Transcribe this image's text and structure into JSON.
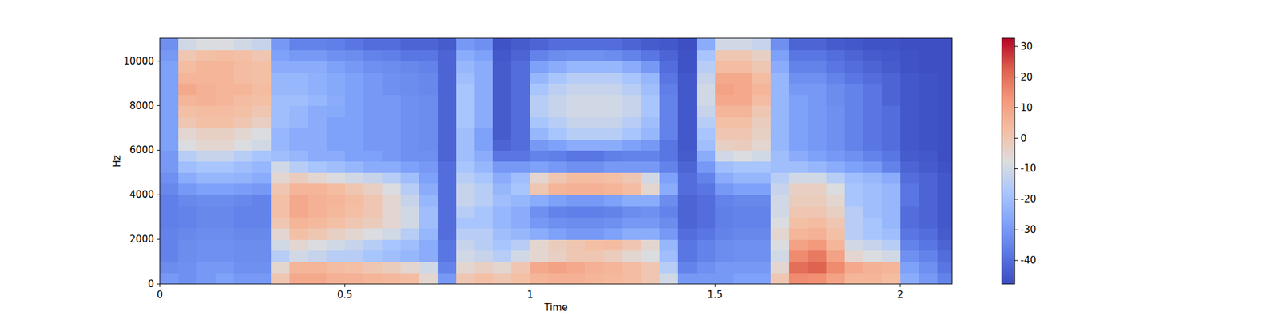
{
  "chart_data": {
    "type": "heatmap",
    "x_label": "Time",
    "y_label": "Hz",
    "xlim": [
      0,
      2.14
    ],
    "ylim": [
      0,
      11025
    ],
    "xticks": [
      0,
      0.5,
      1,
      1.5,
      2
    ],
    "yticks": [
      0,
      2000,
      4000,
      6000,
      8000,
      10000
    ],
    "x_edges": [
      0,
      0.05,
      0.1,
      0.15,
      0.2,
      0.25,
      0.3,
      0.35,
      0.4,
      0.45,
      0.5,
      0.55,
      0.6,
      0.65,
      0.7,
      0.75,
      0.8,
      0.85,
      0.9,
      0.95,
      1,
      1.05,
      1.1,
      1.15,
      1.2,
      1.25,
      1.3,
      1.35,
      1.4,
      1.45,
      1.5,
      1.55,
      1.6,
      1.65,
      1.7,
      1.75,
      1.8,
      1.85,
      1.9,
      1.95,
      2,
      2.05,
      2.1,
      2.14
    ],
    "y_edges": [
      0,
      500,
      1000,
      1500,
      2000,
      2500,
      3000,
      3500,
      4000,
      4500,
      5000,
      5500,
      6000,
      6500,
      7000,
      7500,
      8000,
      8500,
      9000,
      9500,
      10000,
      10500,
      11025
    ],
    "cells": [
      [
        -30,
        -32,
        -30,
        -28,
        -30,
        -30,
        0,
        8,
        8,
        6,
        6,
        5,
        4,
        3,
        -5,
        -30,
        0,
        2,
        0,
        2,
        5,
        6,
        6,
        5,
        4,
        3,
        0,
        -10,
        -30,
        -30,
        -30,
        -28,
        -28,
        0,
        15,
        14,
        10,
        5,
        5,
        3,
        -25,
        -30,
        -35
      ],
      [
        -33,
        -32,
        -30,
        -30,
        -32,
        -32,
        -5,
        5,
        5,
        3,
        2,
        0,
        -2,
        -5,
        -10,
        -35,
        -5,
        -3,
        -5,
        0,
        8,
        10,
        8,
        6,
        5,
        3,
        0,
        -15,
        -35,
        -32,
        -30,
        -30,
        -30,
        -5,
        20,
        22,
        15,
        8,
        6,
        5,
        -28,
        -32,
        -38
      ],
      [
        -35,
        -33,
        -32,
        -32,
        -33,
        -33,
        -15,
        -10,
        -12,
        -15,
        -15,
        -18,
        -20,
        -22,
        -25,
        -38,
        -10,
        -12,
        -15,
        -10,
        -5,
        -3,
        0,
        0,
        -2,
        -5,
        -8,
        -20,
        -38,
        -35,
        -33,
        -32,
        -32,
        -10,
        15,
        18,
        10,
        -5,
        -8,
        -10,
        -32,
        -35,
        -40
      ],
      [
        -35,
        -33,
        -32,
        -32,
        -33,
        -33,
        -10,
        -5,
        -8,
        -10,
        -12,
        -15,
        -18,
        -20,
        -25,
        -38,
        -12,
        -15,
        -18,
        -15,
        -5,
        -2,
        0,
        2,
        3,
        0,
        -5,
        -22,
        -38,
        -35,
        -33,
        -32,
        -32,
        -8,
        10,
        12,
        5,
        -10,
        -12,
        -15,
        -35,
        -38,
        -42
      ],
      [
        -35,
        -34,
        -33,
        -33,
        -34,
        -34,
        -5,
        2,
        0,
        -3,
        -5,
        -8,
        -10,
        -15,
        -22,
        -40,
        -15,
        -15,
        -20,
        -22,
        -25,
        -28,
        -30,
        -30,
        -28,
        -25,
        -25,
        -30,
        -40,
        -38,
        -35,
        -34,
        -34,
        -5,
        5,
        6,
        2,
        -15,
        -18,
        -20,
        -38,
        -40,
        -44
      ],
      [
        -36,
        -35,
        -34,
        -34,
        -35,
        -35,
        0,
        5,
        4,
        2,
        0,
        -2,
        -5,
        -10,
        -20,
        -40,
        -18,
        -18,
        -22,
        -25,
        -30,
        -32,
        -33,
        -33,
        -32,
        -30,
        -30,
        -33,
        -42,
        -40,
        -36,
        -35,
        -35,
        -8,
        2,
        3,
        0,
        -15,
        -18,
        -22,
        -40,
        -42,
        -45
      ],
      [
        -36,
        -35,
        -34,
        -34,
        -35,
        -35,
        2,
        8,
        6,
        4,
        2,
        0,
        -5,
        -10,
        -20,
        -40,
        -15,
        -18,
        -22,
        -25,
        -32,
        -35,
        -36,
        -36,
        -35,
        -33,
        -32,
        -35,
        -42,
        -40,
        -36,
        -35,
        -35,
        -10,
        0,
        0,
        -3,
        -15,
        -20,
        -22,
        -40,
        -42,
        -45
      ],
      [
        -36,
        -34,
        -33,
        -33,
        -34,
        -35,
        2,
        8,
        6,
        5,
        3,
        0,
        -5,
        -12,
        -22,
        -40,
        -12,
        -15,
        -20,
        -22,
        -25,
        -28,
        -30,
        -30,
        -28,
        -25,
        -25,
        -33,
        -42,
        -40,
        -35,
        -34,
        -34,
        -10,
        -2,
        -2,
        -5,
        -18,
        -20,
        -22,
        -38,
        -42,
        -45
      ],
      [
        -34,
        -30,
        -28,
        -28,
        -29,
        -30,
        0,
        5,
        5,
        3,
        0,
        -3,
        -8,
        -15,
        -25,
        -40,
        -12,
        -15,
        -22,
        -18,
        0,
        5,
        6,
        6,
        5,
        3,
        -5,
        -25,
        -40,
        -38,
        -30,
        -28,
        -28,
        -12,
        -3,
        -3,
        -8,
        -18,
        -20,
        -22,
        -38,
        -42,
        -45
      ],
      [
        -32,
        -25,
        -22,
        -22,
        -23,
        -25,
        -5,
        -2,
        -5,
        -8,
        -10,
        -12,
        -15,
        -20,
        -28,
        -40,
        -15,
        -18,
        -25,
        -20,
        -5,
        0,
        3,
        3,
        2,
        0,
        -10,
        -28,
        -40,
        -35,
        -25,
        -22,
        -22,
        -15,
        -10,
        -10,
        -15,
        -20,
        -22,
        -25,
        -40,
        -42,
        -45
      ],
      [
        -30,
        -20,
        -18,
        -18,
        -20,
        -22,
        -10,
        -15,
        -18,
        -20,
        -22,
        -25,
        -25,
        -28,
        -30,
        -40,
        -18,
        -22,
        -30,
        -30,
        -28,
        -30,
        -32,
        -32,
        -30,
        -30,
        -30,
        -35,
        -42,
        -30,
        -20,
        -18,
        -18,
        -20,
        -20,
        -22,
        -25,
        -28,
        -30,
        -35,
        -42,
        -44,
        -46
      ],
      [
        -30,
        -15,
        -12,
        -12,
        -15,
        -18,
        -20,
        -22,
        -25,
        -25,
        -28,
        -28,
        -30,
        -32,
        -32,
        -42,
        -20,
        -25,
        -38,
        -38,
        -35,
        -36,
        -38,
        -38,
        -36,
        -35,
        -35,
        -38,
        -44,
        -25,
        -10,
        -8,
        -10,
        -20,
        -25,
        -28,
        -30,
        -32,
        -35,
        -38,
        -44,
        -45,
        -47
      ],
      [
        -28,
        -8,
        -5,
        -5,
        -8,
        -10,
        -22,
        -25,
        -25,
        -28,
        -28,
        -30,
        -30,
        -32,
        -33,
        -42,
        -20,
        -28,
        -42,
        -40,
        -30,
        -28,
        -25,
        -25,
        -25,
        -28,
        -30,
        -38,
        -45,
        -20,
        -3,
        -2,
        -5,
        -22,
        -28,
        -30,
        -32,
        -35,
        -38,
        -40,
        -45,
        -46,
        -47
      ],
      [
        -28,
        -5,
        -3,
        -3,
        -5,
        -8,
        -22,
        -25,
        -25,
        -28,
        -28,
        -30,
        -30,
        -32,
        -33,
        -42,
        -20,
        -28,
        -44,
        -40,
        -22,
        -18,
        -15,
        -15,
        -15,
        -18,
        -22,
        -35,
        -45,
        -18,
        0,
        0,
        -3,
        -22,
        -28,
        -30,
        -32,
        -35,
        -38,
        -40,
        -45,
        -46,
        -47
      ],
      [
        -28,
        0,
        2,
        2,
        0,
        -3,
        -20,
        -22,
        -25,
        -28,
        -28,
        -30,
        -30,
        -32,
        -33,
        -42,
        -18,
        -25,
        -44,
        -40,
        -18,
        -15,
        -12,
        -12,
        -12,
        -15,
        -20,
        -35,
        -45,
        -15,
        2,
        2,
        -2,
        -22,
        -28,
        -30,
        -32,
        -35,
        -38,
        -40,
        -45,
        -46,
        -47
      ],
      [
        -28,
        2,
        3,
        3,
        2,
        0,
        -20,
        -22,
        -25,
        -26,
        -28,
        -30,
        -30,
        -32,
        -33,
        -42,
        -18,
        -25,
        -44,
        -40,
        -15,
        -12,
        -10,
        -10,
        -10,
        -12,
        -18,
        -35,
        -45,
        -12,
        5,
        5,
        0,
        -22,
        -28,
        -30,
        -32,
        -35,
        -38,
        -40,
        -45,
        -46,
        -47
      ],
      [
        -28,
        5,
        6,
        5,
        3,
        2,
        -20,
        -20,
        -22,
        -25,
        -28,
        -30,
        -30,
        -32,
        -33,
        -42,
        -18,
        -25,
        -44,
        -40,
        -15,
        -12,
        -10,
        -10,
        -10,
        -12,
        -18,
        -35,
        -45,
        -10,
        8,
        8,
        3,
        -22,
        -28,
        -30,
        -33,
        -35,
        -38,
        -42,
        -45,
        -46,
        -47
      ],
      [
        -28,
        8,
        6,
        5,
        5,
        3,
        -22,
        -22,
        -24,
        -26,
        -28,
        -30,
        -32,
        -33,
        -34,
        -42,
        -18,
        -25,
        -44,
        -40,
        -18,
        -14,
        -12,
        -12,
        -12,
        -15,
        -20,
        -36,
        -45,
        -10,
        10,
        8,
        5,
        -22,
        -30,
        -30,
        -33,
        -35,
        -38,
        -42,
        -45,
        -46,
        -47
      ],
      [
        -28,
        5,
        5,
        5,
        3,
        2,
        -22,
        -22,
        -24,
        -26,
        -28,
        -30,
        -32,
        -33,
        -34,
        -42,
        -20,
        -25,
        -44,
        -40,
        -22,
        -18,
        -15,
        -15,
        -15,
        -18,
        -22,
        -38,
        -45,
        -12,
        8,
        8,
        3,
        -22,
        -32,
        -32,
        -35,
        -38,
        -40,
        -42,
        -45,
        -46,
        -47
      ],
      [
        -28,
        3,
        5,
        5,
        3,
        2,
        -25,
        -25,
        -25,
        -28,
        -30,
        -32,
        -33,
        -34,
        -35,
        -42,
        -22,
        -25,
        -44,
        -40,
        -28,
        -25,
        -22,
        -22,
        -22,
        -25,
        -30,
        -40,
        -46,
        -15,
        3,
        3,
        0,
        -25,
        -35,
        -35,
        -38,
        -40,
        -42,
        -44,
        -46,
        -47,
        -47
      ],
      [
        -30,
        0,
        2,
        3,
        2,
        0,
        -28,
        -30,
        -30,
        -32,
        -33,
        -35,
        -36,
        -38,
        -38,
        -42,
        -25,
        -28,
        -45,
        -42,
        -35,
        -33,
        -32,
        -32,
        -33,
        -35,
        -38,
        -42,
        -46,
        -18,
        0,
        0,
        -3,
        -28,
        -38,
        -38,
        -40,
        -42,
        -44,
        -45,
        -46,
        -47,
        -47
      ],
      [
        -32,
        -10,
        -8,
        -8,
        -10,
        -12,
        -30,
        -35,
        -35,
        -36,
        -38,
        -40,
        -40,
        -42,
        -42,
        -44,
        -30,
        -32,
        -46,
        -44,
        -42,
        -40,
        -40,
        -40,
        -40,
        -42,
        -44,
        -45,
        -47,
        -25,
        -10,
        -10,
        -12,
        -32,
        -42,
        -42,
        -44,
        -45,
        -46,
        -46,
        -47,
        -47,
        -47
      ]
    ],
    "colorbar": {
      "lim": [
        -47.7,
        32.7
      ],
      "ticks": [
        -40,
        -30,
        -20,
        -10,
        0,
        10,
        20,
        30
      ]
    }
  }
}
